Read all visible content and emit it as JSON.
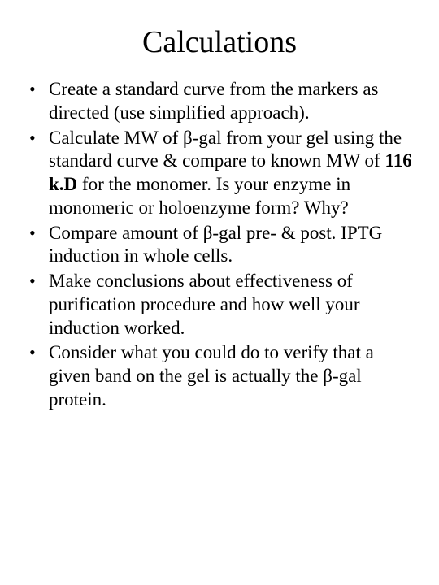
{
  "title": "Calculations",
  "bullets": [
    {
      "pre": "Create a standard curve from the markers as directed (use simplified approach).",
      "bold": "",
      "post": ""
    },
    {
      "pre": "Calculate MW of β-gal from your gel using the standard curve & compare to known MW of ",
      "bold": "116 k.D",
      "post": " for the monomer. Is your enzyme in monomeric or holoenzyme form? Why?"
    },
    {
      "pre": "Compare amount of β-gal pre- & post. IPTG induction in whole cells.",
      "bold": "",
      "post": ""
    },
    {
      "pre": "Make conclusions about effectiveness of purification procedure and how well your induction worked.",
      "bold": "",
      "post": ""
    },
    {
      "pre": "Consider what you could do to verify that a given band on the gel is actually the β-gal protein.",
      "bold": "",
      "post": ""
    }
  ],
  "style": {
    "background_color": "#ffffff",
    "text_color": "#000000",
    "title_fontsize": 38,
    "body_fontsize": 23,
    "font_family": "Times New Roman"
  }
}
